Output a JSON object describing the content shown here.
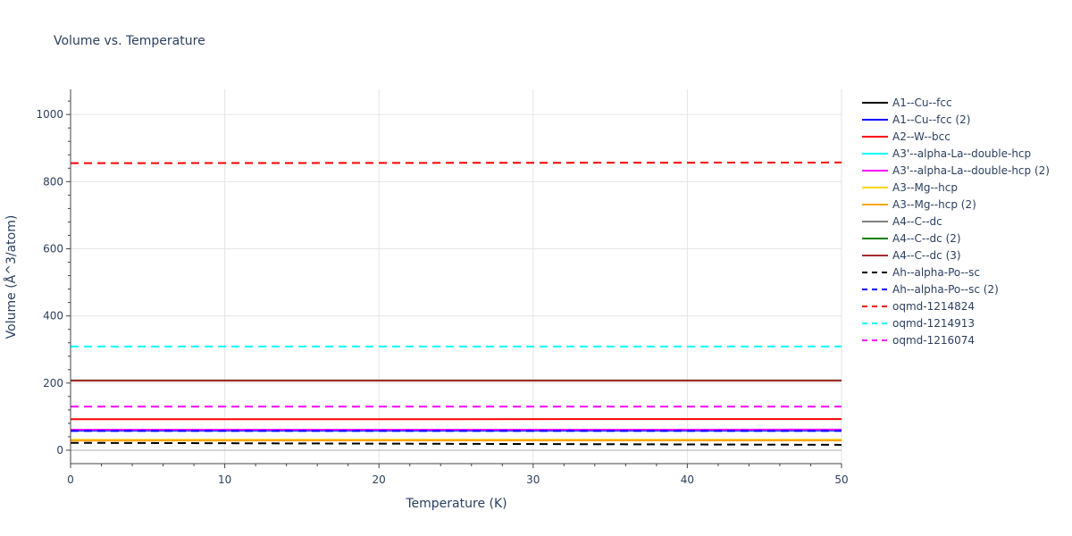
{
  "chart_data": {
    "type": "line",
    "title": "Volume vs. Temperature",
    "xlabel": "Temperature (K)",
    "ylabel": "Volume (Å^3/atom)",
    "xlim": [
      0,
      50
    ],
    "ylim": [
      -40,
      1075
    ],
    "x_ticks": [
      0,
      10,
      20,
      30,
      40,
      50
    ],
    "y_ticks": [
      0,
      200,
      400,
      600,
      800,
      1000
    ],
    "grid": true,
    "legend_position": "right",
    "x": [
      0,
      50
    ],
    "series": [
      {
        "name": "A1--Cu--fcc",
        "color": "#000000",
        "dash": "solid",
        "values": [
          29.3,
          29.4
        ]
      },
      {
        "name": "A1--Cu--fcc (2)",
        "color": "#0000ff",
        "dash": "solid",
        "values": [
          58.2,
          58.3
        ]
      },
      {
        "name": "A2--W--bcc",
        "color": "#ff0000",
        "dash": "solid",
        "values": [
          92.5,
          92.6
        ]
      },
      {
        "name": "A3'--alpha-La--double-hcp",
        "color": "#00ffff",
        "dash": "solid",
        "values": [
          60.5,
          60.6
        ]
      },
      {
        "name": "A3'--alpha-La--double-hcp (2)",
        "color": "#ff00ff",
        "dash": "solid",
        "values": [
          61.2,
          61.3
        ]
      },
      {
        "name": "A3--Mg--hcp",
        "color": "#ffd700",
        "dash": "solid",
        "values": [
          31.0,
          31.1
        ]
      },
      {
        "name": "A3--Mg--hcp (2)",
        "color": "#ffa500",
        "dash": "solid",
        "values": [
          29.0,
          29.1
        ]
      },
      {
        "name": "A4--C--dc",
        "color": "#808080",
        "dash": "solid",
        "values": [
          208.0,
          208.1
        ]
      },
      {
        "name": "A4--C--dc (2)",
        "color": "#008000",
        "dash": "solid",
        "values": [
          207.5,
          207.6
        ]
      },
      {
        "name": "A4--C--dc (3)",
        "color": "#a52a2a",
        "dash": "solid",
        "values": [
          207.0,
          207.1
        ]
      },
      {
        "name": "Ah--alpha-Po--sc",
        "color": "#000000",
        "dash": "dash",
        "values": [
          22.0,
          16.0
        ]
      },
      {
        "name": "Ah--alpha-Po--sc (2)",
        "color": "#0000ff",
        "dash": "dash",
        "values": [
          57.5,
          57.6
        ]
      },
      {
        "name": "oqmd-1214824",
        "color": "#ff0000",
        "dash": "dash",
        "values": [
          855.0,
          857.0
        ]
      },
      {
        "name": "oqmd-1214913",
        "color": "#00ffff",
        "dash": "dash",
        "values": [
          309.0,
          309.1
        ]
      },
      {
        "name": "oqmd-1216074",
        "color": "#ff00ff",
        "dash": "dash",
        "values": [
          130.0,
          130.1
        ]
      }
    ]
  }
}
